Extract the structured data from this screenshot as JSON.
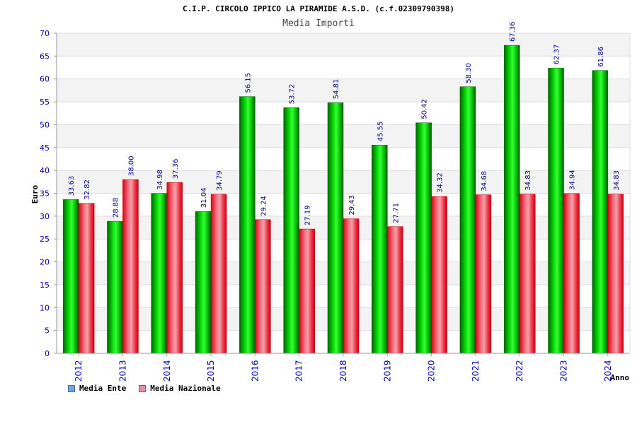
{
  "header": {
    "title": "C.I.P. CIRCOLO IPPICO LA PIRAMIDE A.S.D. (c.f.02309790398)",
    "subtitle": "Media Importi"
  },
  "legend": {
    "ente": {
      "label": "Media Ente",
      "color": "#6aa7f0"
    },
    "nazionale": {
      "label": "Media Nazionale",
      "color": "#e88bb3"
    }
  },
  "chart_data": {
    "type": "bar",
    "title": "Media Importi",
    "xlabel": "Anno",
    "ylabel": "Euro",
    "ylim": [
      0,
      70
    ],
    "ytick_step": 5,
    "grid": true,
    "legend_position": "bottom-left",
    "categories": [
      "2012",
      "2013",
      "2014",
      "2015",
      "2016",
      "2017",
      "2018",
      "2019",
      "2020",
      "2021",
      "2022",
      "2023",
      "2024"
    ],
    "series": [
      {
        "name": "Media Ente",
        "color": "#00aa00",
        "values": [
          33.63,
          28.88,
          34.98,
          31.04,
          56.15,
          53.72,
          54.81,
          45.55,
          50.42,
          58.3,
          67.36,
          62.37,
          61.86
        ],
        "labels": [
          "33.63",
          "28.88",
          "34.98",
          "31.04",
          "56.15",
          "53.72",
          "54.81",
          "45.55",
          "50.42",
          "58.30",
          "67.36",
          "62.37",
          "61.86"
        ]
      },
      {
        "name": "Media Nazionale",
        "color": "#ee2233",
        "values": [
          32.82,
          38.0,
          37.36,
          34.79,
          29.24,
          27.19,
          29.43,
          27.71,
          34.32,
          34.68,
          34.83,
          34.94,
          34.83
        ],
        "labels": [
          "32.82",
          "38.00",
          "37.36",
          "34.79",
          "29.24",
          "27.19",
          "29.43",
          "27.71",
          "34.32",
          "34.68",
          "34.83",
          "34.94",
          "34.83"
        ]
      }
    ]
  }
}
